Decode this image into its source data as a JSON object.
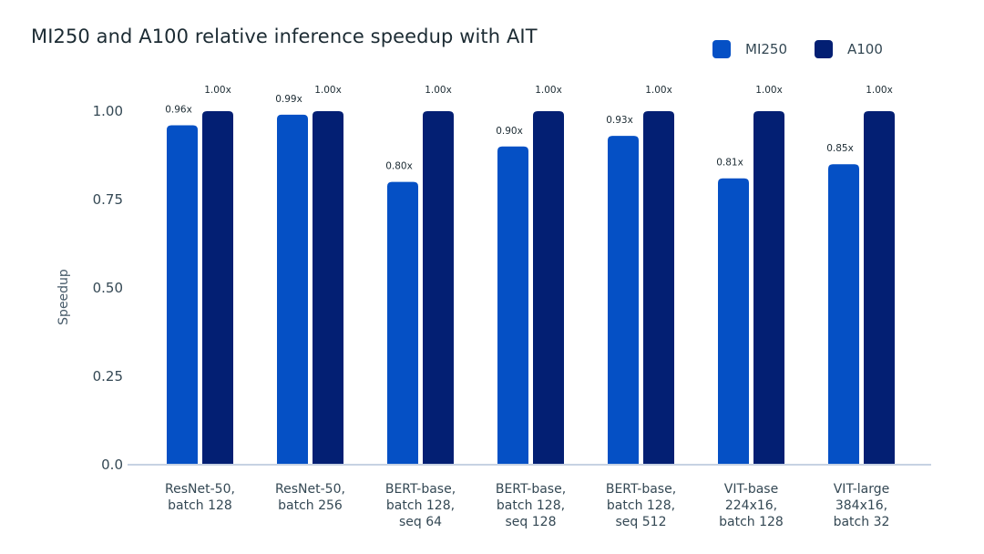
{
  "chart_data": {
    "type": "bar",
    "title": "MI250 and A100 relative inference speedup with AIT",
    "xlabel": "",
    "ylabel": "Speedup",
    "ylim": [
      0,
      1.0
    ],
    "yticks": [
      "0.0",
      "0.25",
      "0.50",
      "0.75",
      "1.00"
    ],
    "ytick_values": [
      0,
      0.25,
      0.5,
      0.75,
      1.0
    ],
    "grid": false,
    "legend_position": "top-right",
    "categories": [
      [
        "ResNet-50,",
        "batch 128"
      ],
      [
        "ResNet-50,",
        "batch 256"
      ],
      [
        "BERT-base,",
        "batch 128,",
        "seq 64"
      ],
      [
        "BERT-base,",
        "batch 128,",
        "seq 128"
      ],
      [
        "BERT-base,",
        "batch 128,",
        "seq 512"
      ],
      [
        "VIT-base",
        "224x16,",
        "batch 128"
      ],
      [
        "VIT-large",
        "384x16,",
        "batch 32"
      ]
    ],
    "series": [
      {
        "name": "MI250",
        "color": "#0550c5",
        "values": [
          0.96,
          0.99,
          0.8,
          0.9,
          0.93,
          0.81,
          0.85
        ],
        "labels": [
          "0.96x",
          "0.99x",
          "0.80x",
          "0.90x",
          "0.93x",
          "0.81x",
          "0.85x"
        ]
      },
      {
        "name": "A100",
        "color": "#031f73",
        "values": [
          1.0,
          1.0,
          1.0,
          1.0,
          1.0,
          1.0,
          1.0
        ],
        "labels": [
          "1.00x",
          "1.00x",
          "1.00x",
          "1.00x",
          "1.00x",
          "1.00x",
          "1.00x"
        ]
      }
    ]
  }
}
